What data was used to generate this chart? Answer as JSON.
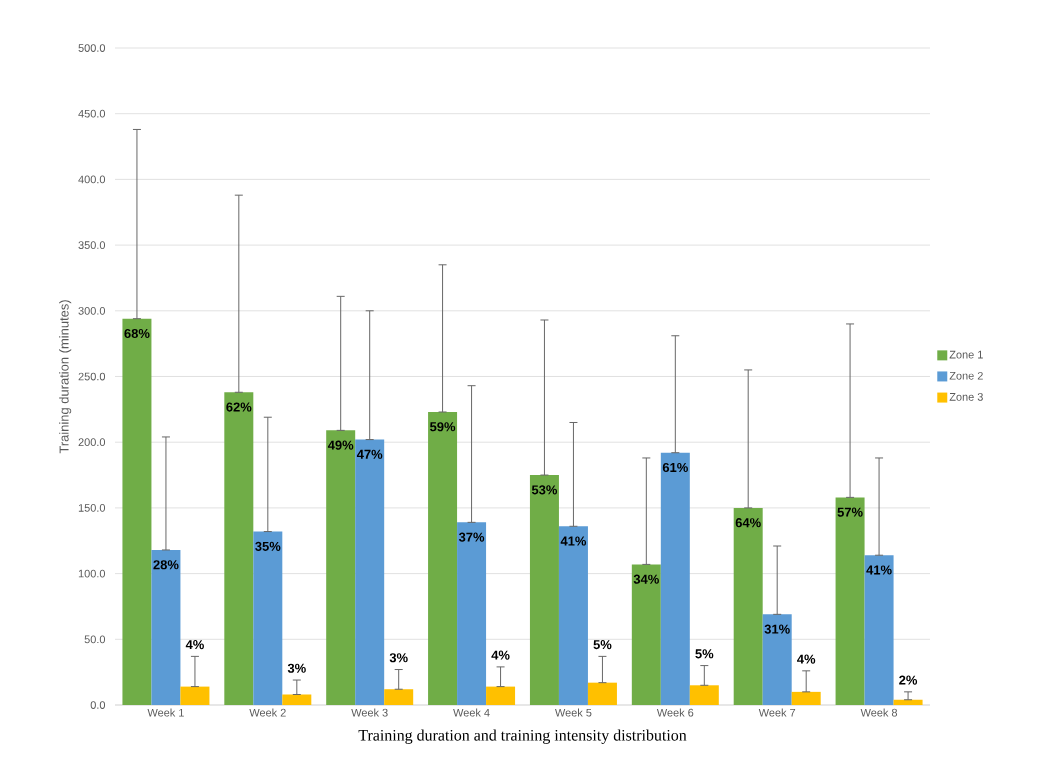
{
  "chart_data": {
    "type": "bar",
    "xlabel": "Training duration and training intensity distribution",
    "ylabel": "Training duration (minutes)",
    "categories": [
      "Week 1",
      "Week 2",
      "Week 3",
      "Week 4",
      "Week 5",
      "Week 6",
      "Week 7",
      "Week 8"
    ],
    "series": [
      {
        "name": "Zone 1",
        "color": "#70ad47",
        "values": [
          294,
          238,
          209,
          223,
          175,
          107,
          150,
          158
        ],
        "errors": [
          [
            294,
            438
          ],
          [
            238,
            388
          ],
          [
            209,
            311
          ],
          [
            223,
            335
          ],
          [
            175,
            293
          ],
          [
            107,
            188
          ],
          [
            150,
            255
          ],
          [
            158,
            290
          ]
        ]
      },
      {
        "name": "Zone 2",
        "color": "#5b9bd5",
        "values": [
          118,
          132,
          202,
          139,
          136,
          192,
          69,
          114
        ],
        "errors": [
          [
            118,
            204
          ],
          [
            132,
            219
          ],
          [
            202,
            300
          ],
          [
            139,
            243
          ],
          [
            136,
            215
          ],
          [
            192,
            281
          ],
          [
            69,
            121
          ],
          [
            114,
            188
          ]
        ]
      },
      {
        "name": "Zone 3",
        "color": "#ffc000",
        "values": [
          14,
          8,
          12,
          14,
          17,
          15,
          10,
          4
        ],
        "errors": [
          [
            14,
            37
          ],
          [
            8,
            19
          ],
          [
            12,
            27
          ],
          [
            14,
            29
          ],
          [
            17,
            37
          ],
          [
            15,
            30
          ],
          [
            10,
            26
          ],
          [
            4,
            10
          ]
        ]
      }
    ],
    "annotations": [
      "68%",
      "62%",
      "49%",
      "59%",
      "53%",
      "34%",
      "64%",
      "57%",
      "28%",
      "35%",
      "47%",
      "37%",
      "41%",
      "61%",
      "31%",
      "41%",
      "4%",
      "3%",
      "3%",
      "4%",
      "5%",
      "5%",
      "4%",
      "2%"
    ],
    "ylim": [
      0,
      500
    ],
    "yticks": [
      {
        "value": 0,
        "label": "0.0"
      },
      {
        "value": 50,
        "label": "50.0"
      },
      {
        "value": 100,
        "label": "100.0"
      },
      {
        "value": 150,
        "label": "150.0"
      },
      {
        "value": 200,
        "label": "200.0"
      },
      {
        "value": 250,
        "label": "250.0"
      },
      {
        "value": 300,
        "label": "300.0"
      },
      {
        "value": 350,
        "label": "350.0"
      },
      {
        "value": 400,
        "label": "400.0"
      },
      {
        "value": 450,
        "label": "450.0"
      },
      {
        "value": 500,
        "label": "500.0"
      }
    ],
    "grid": "y",
    "legend": "right"
  }
}
